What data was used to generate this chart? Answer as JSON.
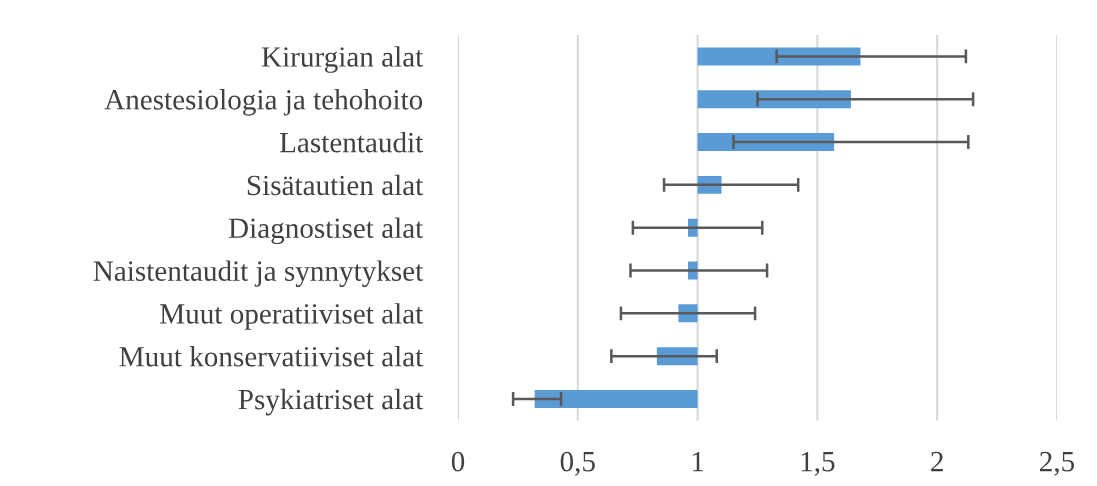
{
  "chart_data": {
    "type": "bar",
    "orientation": "horizontal",
    "categories": [
      "Kirurgian alat",
      "Anestesiologia ja tehohoito",
      "Lastentaudit",
      "Sisätautien alat",
      "Diagnostiset alat",
      "Naistentaudit ja synnytykset",
      "Muut operatiiviset alat",
      "Muut konservatiiviset alat",
      "Psykiatriset alat"
    ],
    "base": [
      1,
      1,
      1,
      1,
      1,
      1,
      1,
      1,
      1
    ],
    "values": [
      0.68,
      0.64,
      0.57,
      0.1,
      -0.04,
      -0.04,
      -0.08,
      -0.17,
      -0.68
    ],
    "errors": [
      [
        1.33,
        2.12
      ],
      [
        1.25,
        2.15
      ],
      [
        1.15,
        2.13
      ],
      [
        0.86,
        1.42
      ],
      [
        0.73,
        1.27
      ],
      [
        0.72,
        1.29
      ],
      [
        0.68,
        1.24
      ],
      [
        0.64,
        1.08
      ],
      [
        0.23,
        0.43
      ]
    ],
    "color": "#5b9bd5",
    "xlim": [
      0,
      2.5
    ],
    "xticks": [
      0,
      {
        "value": 0.5,
        "label": "0,5"
      },
      1,
      {
        "value": 1.5,
        "label": "1,5"
      },
      2,
      {
        "value": 2.5,
        "label": "2,5"
      }
    ],
    "grid": "x"
  }
}
